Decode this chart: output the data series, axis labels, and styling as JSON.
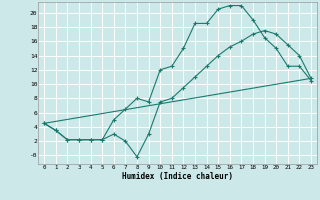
{
  "xlabel": "Humidex (Indice chaleur)",
  "xlim": [
    -0.5,
    23.5
  ],
  "ylim": [
    -1.2,
    21.5
  ],
  "bg_color": "#cce8e8",
  "grid_color": "#ffffff",
  "line_color": "#1a7a6e",
  "line1_x": [
    0,
    1,
    2,
    3,
    4,
    5,
    6,
    7,
    8,
    9,
    10,
    11,
    12,
    13,
    14,
    15,
    16,
    17,
    18,
    19,
    20,
    21,
    22,
    23
  ],
  "line1_y": [
    4.5,
    3.5,
    2.2,
    2.2,
    2.2,
    2.2,
    5.0,
    6.5,
    8.0,
    7.5,
    12.0,
    12.5,
    15.0,
    18.5,
    18.5,
    20.5,
    21.0,
    21.0,
    19.0,
    16.5,
    15.0,
    12.5,
    12.5,
    10.5
  ],
  "line2_x": [
    0,
    1,
    2,
    3,
    4,
    5,
    6,
    7,
    8,
    9,
    10,
    11,
    12,
    13,
    14,
    15,
    16,
    17,
    18,
    19,
    20,
    21,
    22,
    23
  ],
  "line2_y": [
    4.5,
    3.5,
    2.2,
    2.2,
    2.2,
    2.2,
    3.0,
    2.0,
    -0.2,
    3.0,
    7.5,
    8.0,
    9.5,
    11.0,
    12.5,
    14.0,
    15.2,
    16.0,
    17.0,
    17.5,
    17.0,
    15.5,
    14.0,
    10.8
  ],
  "line3_x": [
    0,
    23
  ],
  "line3_y": [
    4.5,
    10.8
  ],
  "xticks": [
    0,
    1,
    2,
    3,
    4,
    5,
    6,
    7,
    8,
    9,
    10,
    11,
    12,
    13,
    14,
    15,
    16,
    17,
    18,
    19,
    20,
    21,
    22,
    23
  ],
  "yticks": [
    0,
    2,
    4,
    6,
    8,
    10,
    12,
    14,
    16,
    18,
    20
  ],
  "ytick_labels": [
    "-0",
    "2",
    "4",
    "6",
    "8",
    "10",
    "12",
    "14",
    "16",
    "18",
    "20"
  ],
  "xtick_labels": [
    "0",
    "1",
    "2",
    "3",
    "4",
    "5",
    "6",
    "7",
    "8",
    "9",
    "10",
    "11",
    "12",
    "13",
    "14",
    "15",
    "16",
    "17",
    "18",
    "19",
    "20",
    "21",
    "22",
    "23"
  ]
}
